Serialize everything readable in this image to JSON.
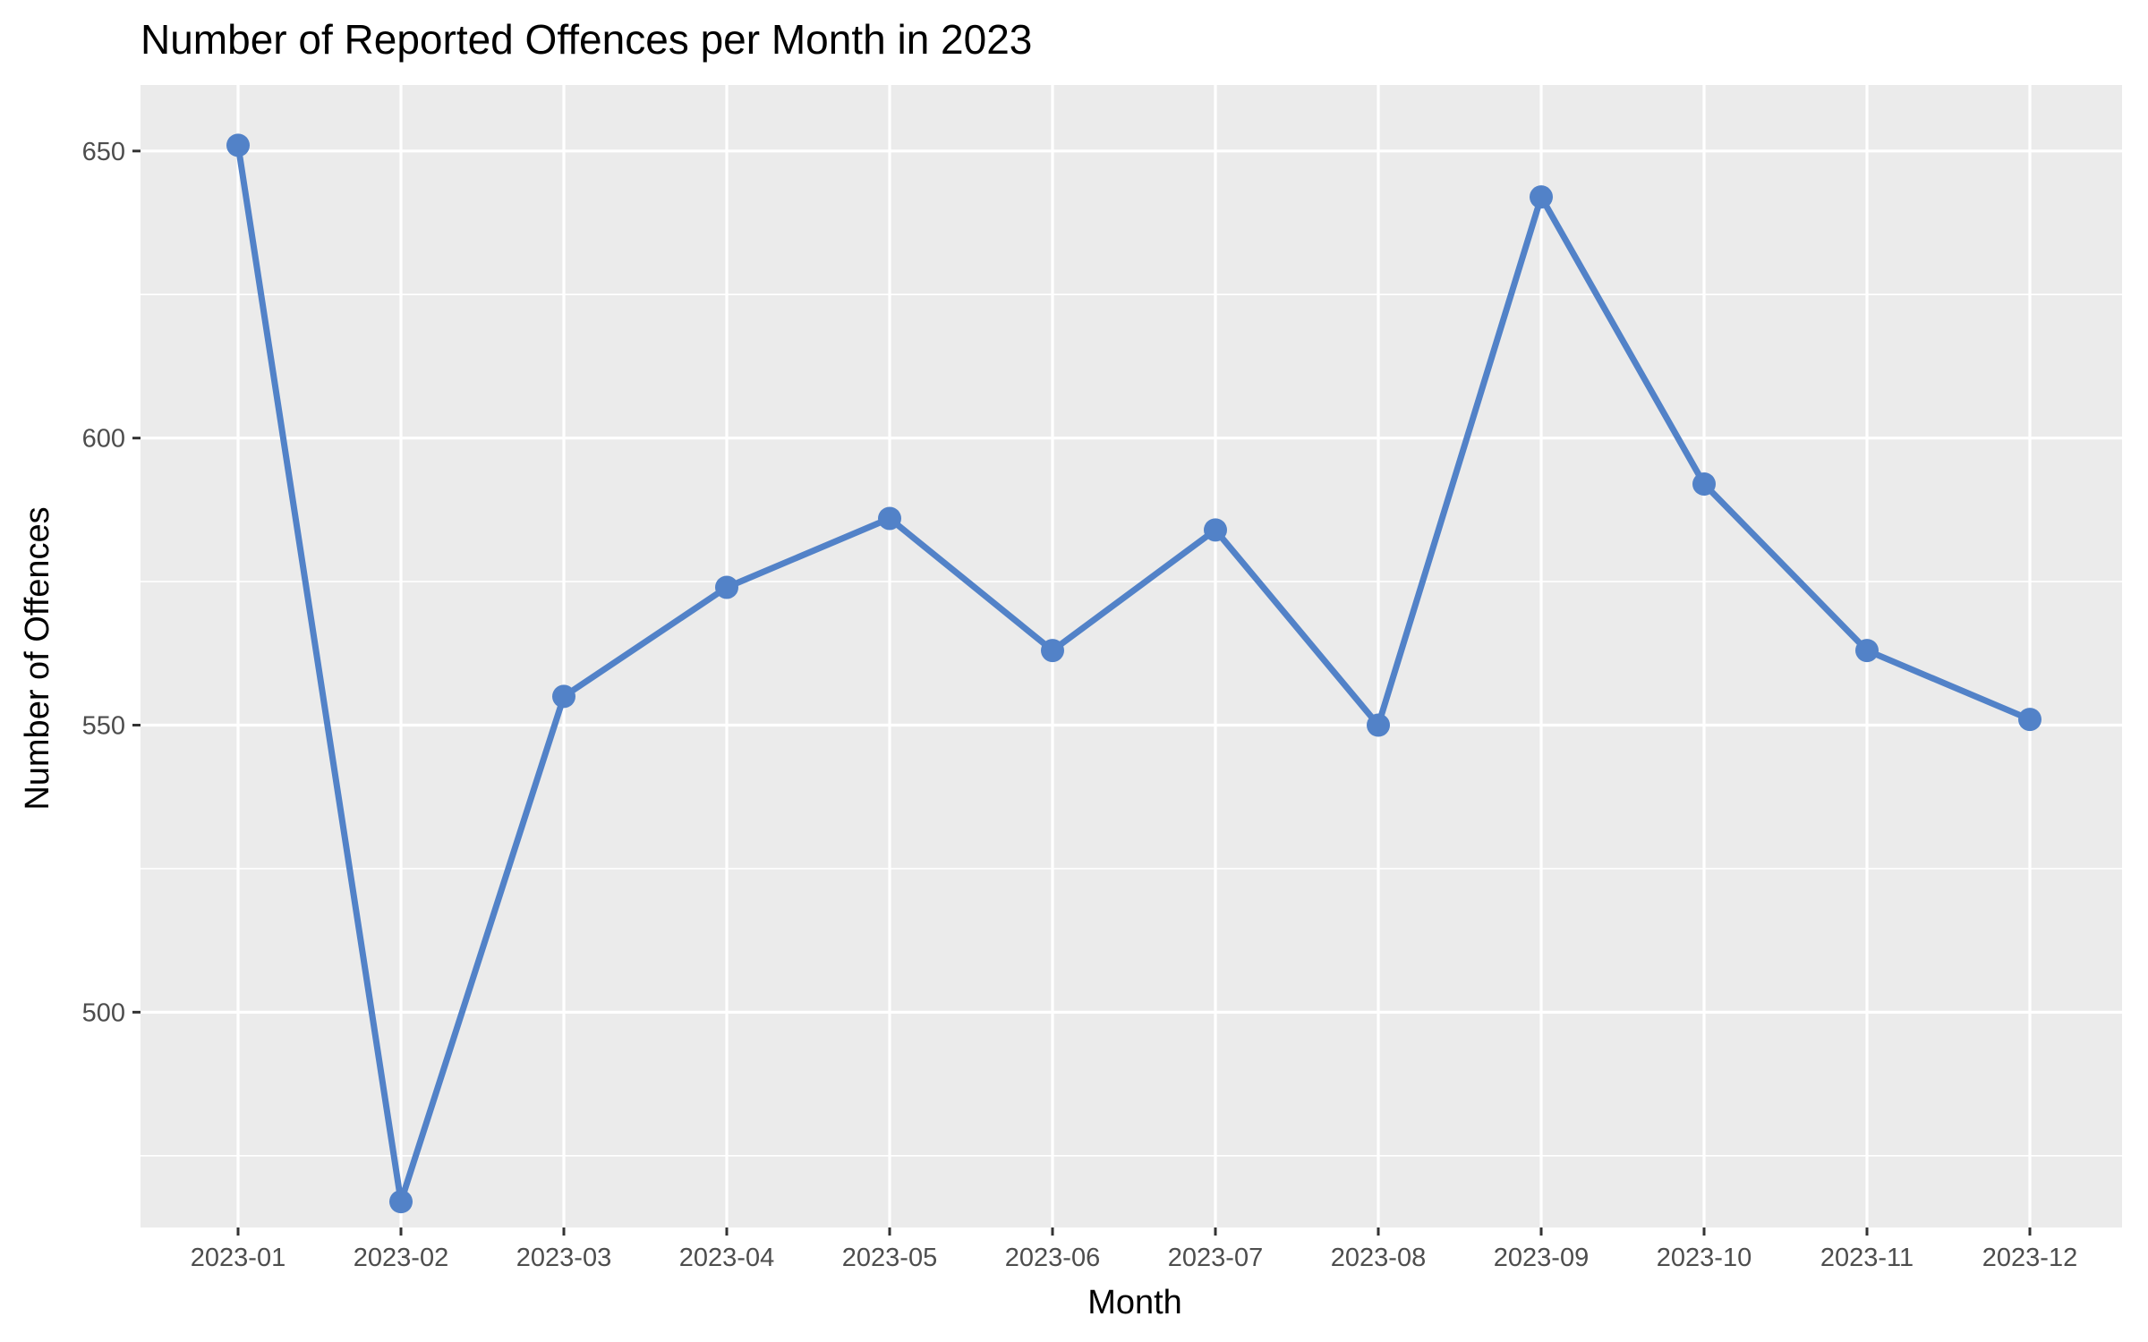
{
  "chart_data": {
    "type": "line",
    "title": "Number of Reported Offences per Month in 2023",
    "xlabel": "Month",
    "ylabel": "Number of Offences",
    "categories": [
      "2023-01",
      "2023-02",
      "2023-03",
      "2023-04",
      "2023-05",
      "2023-06",
      "2023-07",
      "2023-08",
      "2023-09",
      "2023-10",
      "2023-11",
      "2023-12"
    ],
    "series": [
      {
        "values": [
          651,
          467,
          555,
          574,
          586,
          563,
          584,
          550,
          642,
          592,
          563,
          551
        ]
      }
    ],
    "ylim": [
      462.5,
      661.5
    ],
    "y_ticks": [
      500,
      550,
      600,
      650
    ],
    "y_tick_labels": [
      "500",
      "550",
      "600",
      "650"
    ],
    "grid": true,
    "legend": "none",
    "colors": {
      "series": "#5282c8",
      "panel_background": "#ebebeb",
      "grid": "#ffffff",
      "tick_text": "#4d4d4d"
    }
  }
}
